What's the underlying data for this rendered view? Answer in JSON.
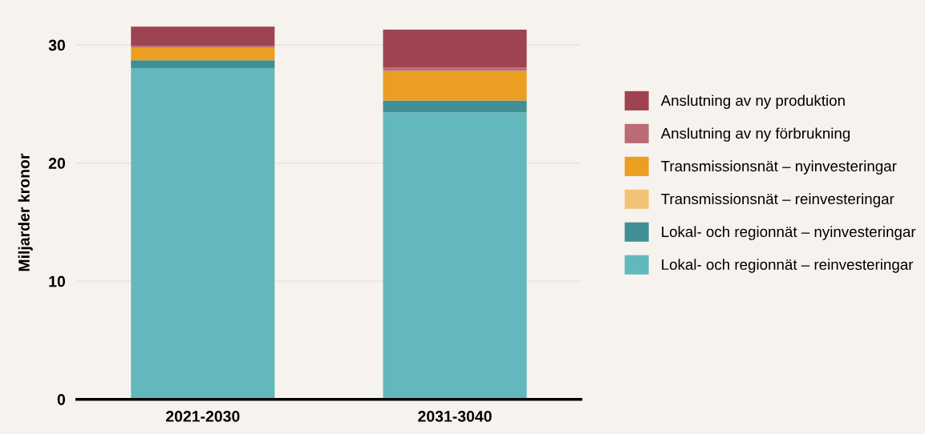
{
  "chart_data": {
    "type": "bar",
    "stacked": true,
    "ylabel": "Miljarder kronor",
    "categories": [
      "2021-2030",
      "2031-3040"
    ],
    "series": [
      {
        "name": "Lokal- och regionnät – reinvesteringar",
        "color": "#62b8bd",
        "values": [
          28.05,
          24.3
        ]
      },
      {
        "name": "Lokal- och regionnät – nyinvesteringar",
        "color": "#3f8f94",
        "values": [
          0.65,
          1.0
        ]
      },
      {
        "name": "Transmissionsnät – reinvesteringar",
        "color": "#f2c375",
        "values": [
          null,
          null
        ]
      },
      {
        "name": "Transmissionsnät – nyinvesteringar",
        "color": "#eb9e22",
        "values": [
          1.1,
          2.5
        ]
      },
      {
        "name": "Anslutning av ny förbrukning",
        "color": "#bb6b72",
        "values": [
          0.1,
          0.3
        ]
      },
      {
        "name": "Anslutning av ny produktion",
        "color": "#9e4450",
        "values": [
          1.65,
          3.2
        ]
      }
    ],
    "ylim": [
      0,
      31.6
    ],
    "yticks": [
      0,
      10,
      20,
      30
    ],
    "grid": "y",
    "legend": "right"
  }
}
